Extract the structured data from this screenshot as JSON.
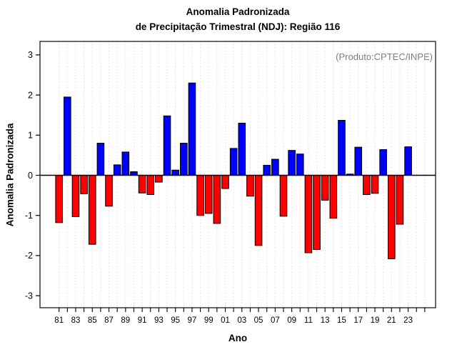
{
  "title": {
    "line1": "Anomalia Padronizada",
    "line2": "de Precipitação Trimestral (NDJ): Região 116"
  },
  "annotation": "(Produto:CPTEC/INPE)",
  "colors": {
    "positive": "#0000FF",
    "negative": "#FF0000",
    "bar_outline": "#000000",
    "grid": "#D8D8D8",
    "axis": "#000000",
    "annotation_gray": "#7E7E7E"
  },
  "chart_data": {
    "type": "bar",
    "title": "Anomalia Padronizada de Precipitação Trimestral (NDJ): Região 116",
    "xlabel": "Ano",
    "ylabel": "Anomalia Padronizada",
    "ylim": [
      -3,
      3
    ],
    "yticks": [
      -3,
      -2,
      -1,
      0,
      1,
      2,
      3
    ],
    "xtick_labels": [
      "81",
      "83",
      "85",
      "87",
      "89",
      "91",
      "93",
      "95",
      "97",
      "99",
      "01",
      "03",
      "05",
      "07",
      "09",
      "11",
      "13",
      "15",
      "17",
      "19",
      "21",
      "23"
    ],
    "grid": "vertical-dotted",
    "legend": "none",
    "bar_color_rule": "blue if value >= 0, red if value < 0",
    "x": [
      1981,
      1982,
      1983,
      1984,
      1985,
      1986,
      1987,
      1988,
      1989,
      1990,
      1991,
      1992,
      1993,
      1994,
      1995,
      1996,
      1997,
      1998,
      1999,
      2000,
      2001,
      2002,
      2003,
      2004,
      2005,
      2006,
      2007,
      2008,
      2009,
      2010,
      2011,
      2012,
      2013,
      2014,
      2015,
      2016,
      2017,
      2018,
      2019,
      2020,
      2021,
      2022,
      2023
    ],
    "values": [
      -1.18,
      1.95,
      -1.03,
      -0.46,
      -1.72,
      0.8,
      -0.77,
      0.26,
      0.58,
      0.09,
      -0.44,
      -0.48,
      -0.17,
      1.48,
      0.13,
      0.8,
      2.3,
      -1.0,
      -0.95,
      -1.2,
      -0.33,
      0.67,
      1.3,
      -0.52,
      -1.75,
      0.25,
      0.4,
      -1.02,
      0.62,
      0.53,
      -1.93,
      -1.85,
      -0.62,
      -1.07,
      1.37,
      0.03,
      0.7,
      -0.48,
      -0.45,
      0.64,
      -2.08,
      -1.22,
      0.71
    ]
  }
}
